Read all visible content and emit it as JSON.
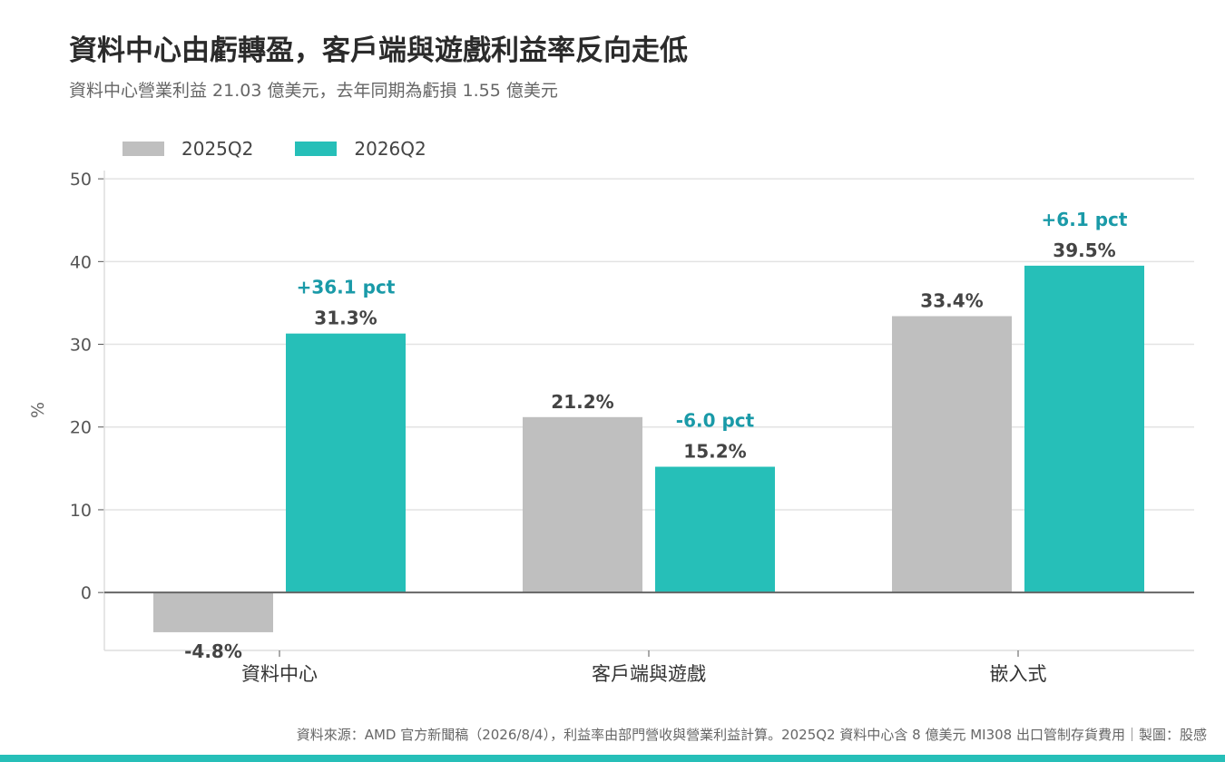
{
  "title": "資料中心由虧轉盈，客戶端與遊戲利益率反向走低",
  "subtitle": "資料中心營業利益 21.03 億美元，去年同期為虧損 1.55 億美元",
  "source": "資料來源：AMD 官方新聞稿（2026/8/4），利益率由部門營收與營業利益計算。2025Q2 資料中心含 8 億美元 MI308 出口管制存貨費用｜製圖：股感",
  "colors": {
    "series_2025": "#bfbfbf",
    "series_2026": "#26bfb8",
    "delta_text": "#1a9aa8",
    "bottom_bar": "#26bfb8"
  },
  "chart_data": {
    "type": "bar",
    "categories": [
      "資料中心",
      "客戶端與遊戲",
      "嵌入式"
    ],
    "series": [
      {
        "name": "2025Q2",
        "values": [
          -4.8,
          21.2,
          33.4
        ],
        "labels": [
          "-4.8%",
          "21.2%",
          "33.4%"
        ]
      },
      {
        "name": "2026Q2",
        "values": [
          31.3,
          15.2,
          39.5
        ],
        "labels": [
          "31.3%",
          "15.2%",
          "39.5%"
        ]
      }
    ],
    "deltas": [
      "+36.1 pct",
      "-6.0 pct",
      "+6.1 pct"
    ],
    "ylabel": "%",
    "xlabel": "",
    "ylim": [
      -7,
      51
    ],
    "yticks": [
      0,
      10,
      20,
      30,
      40,
      50
    ],
    "grid": true,
    "legend_position": "top-left"
  }
}
